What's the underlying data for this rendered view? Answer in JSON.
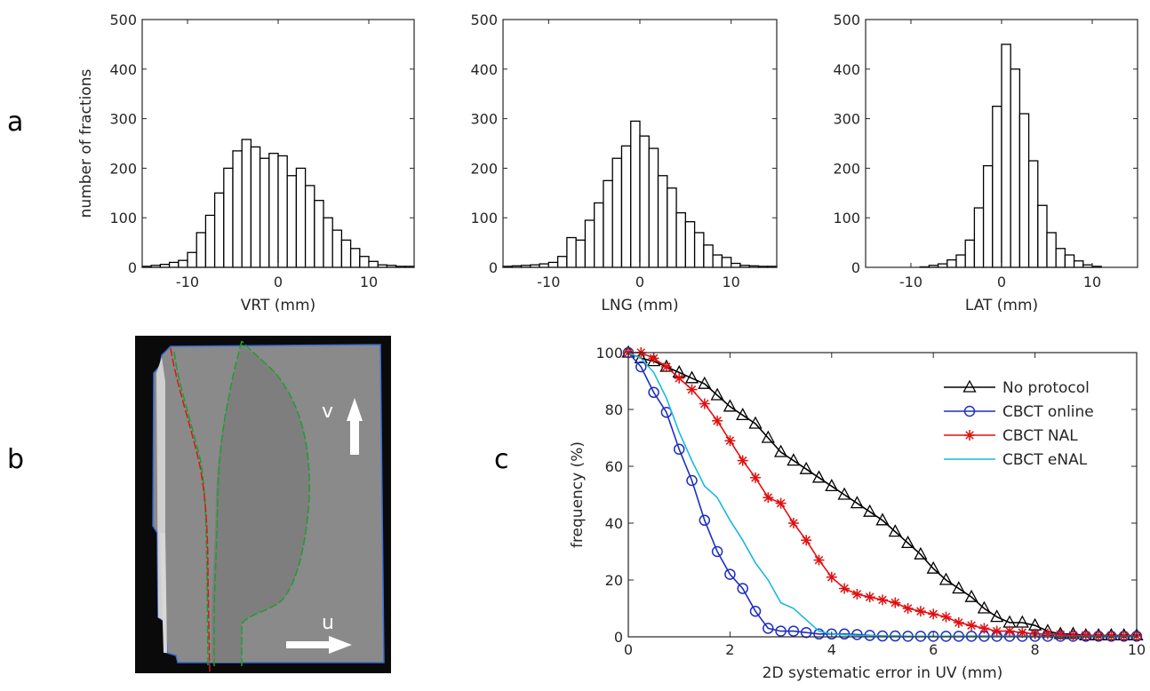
{
  "panels": {
    "a": "a",
    "b": "b",
    "c": "c"
  },
  "image_panel": {
    "label_v": "v",
    "label_u": "u"
  },
  "chart_data": [
    {
      "type": "bar",
      "panel": "a",
      "xlabel": "VRT (mm)",
      "ylabel": "number of fractions",
      "xlim": [
        -15,
        15
      ],
      "ylim": [
        0,
        500
      ],
      "xticks": [
        -10,
        0,
        10
      ],
      "yticks": [
        0,
        100,
        200,
        300,
        400,
        500
      ],
      "bin_width": 1,
      "bin_centers": [
        -14.5,
        -13.5,
        -12.5,
        -11.5,
        -10.5,
        -9.5,
        -8.5,
        -7.5,
        -6.5,
        -5.5,
        -4.5,
        -3.5,
        -2.5,
        -1.5,
        -0.5,
        0.5,
        1.5,
        2.5,
        3.5,
        4.5,
        5.5,
        6.5,
        7.5,
        8.5,
        9.5,
        10.5,
        11.5,
        12.5,
        13.5,
        14.5
      ],
      "values": [
        2,
        4,
        6,
        10,
        14,
        30,
        70,
        105,
        150,
        200,
        235,
        258,
        243,
        220,
        230,
        225,
        185,
        200,
        165,
        135,
        100,
        75,
        55,
        38,
        22,
        12,
        5,
        4,
        2,
        2
      ]
    },
    {
      "type": "bar",
      "panel": "a",
      "xlabel": "LNG (mm)",
      "ylabel": "",
      "xlim": [
        -15,
        15
      ],
      "ylim": [
        0,
        500
      ],
      "xticks": [
        -10,
        0,
        10
      ],
      "yticks": [
        0,
        100,
        200,
        300,
        400,
        500
      ],
      "bin_width": 1,
      "bin_centers": [
        -14.5,
        -13.5,
        -12.5,
        -11.5,
        -10.5,
        -9.5,
        -8.5,
        -7.5,
        -6.5,
        -5.5,
        -4.5,
        -3.5,
        -2.5,
        -1.5,
        -0.5,
        0.5,
        1.5,
        2.5,
        3.5,
        4.5,
        5.5,
        6.5,
        7.5,
        8.5,
        9.5,
        10.5,
        11.5,
        12.5,
        13.5,
        14.5
      ],
      "values": [
        2,
        3,
        4,
        5,
        7,
        10,
        22,
        60,
        55,
        95,
        130,
        175,
        220,
        245,
        295,
        265,
        240,
        185,
        160,
        110,
        92,
        70,
        45,
        25,
        20,
        8,
        4,
        3,
        2,
        2
      ]
    },
    {
      "type": "bar",
      "panel": "a",
      "xlabel": "LAT (mm)",
      "ylabel": "",
      "xlim": [
        -15,
        15
      ],
      "ylim": [
        0,
        500
      ],
      "xticks": [
        -10,
        0,
        10
      ],
      "yticks": [
        0,
        100,
        200,
        300,
        400,
        500
      ],
      "bin_width": 1,
      "bin_centers": [
        -8.5,
        -7.5,
        -6.5,
        -5.5,
        -4.5,
        -3.5,
        -2.5,
        -1.5,
        -0.5,
        0.5,
        1.5,
        2.5,
        3.5,
        4.5,
        5.5,
        6.5,
        7.5,
        8.5,
        9.5,
        10.5
      ],
      "values": [
        1,
        4,
        7,
        15,
        25,
        55,
        120,
        205,
        325,
        450,
        400,
        310,
        215,
        125,
        70,
        38,
        25,
        13,
        5,
        2
      ]
    },
    {
      "type": "line",
      "panel": "c",
      "xlabel": "2D systematic error in UV (mm)",
      "ylabel": "frequency (%)",
      "xlim": [
        0,
        10
      ],
      "ylim": [
        0,
        100
      ],
      "xticks": [
        0,
        2,
        4,
        6,
        8,
        10
      ],
      "yticks": [
        0,
        20,
        40,
        60,
        80,
        100
      ],
      "legend_position": "top-right",
      "series": [
        {
          "name": "No protocol",
          "color": "#000000",
          "marker": "triangle",
          "x": [
            0,
            0.25,
            0.5,
            0.75,
            1,
            1.25,
            1.5,
            1.75,
            2,
            2.25,
            2.5,
            2.75,
            3,
            3.25,
            3.5,
            3.75,
            4,
            4.25,
            4.5,
            4.75,
            5,
            5.25,
            5.5,
            5.75,
            6,
            6.25,
            6.5,
            6.75,
            7,
            7.25,
            7.5,
            7.75,
            8,
            8.25,
            8.5,
            8.75,
            9,
            9.25,
            9.5,
            9.75,
            10
          ],
          "y": [
            100,
            98,
            97,
            95,
            93,
            91,
            89,
            85,
            81,
            78,
            75,
            70,
            65,
            62,
            59,
            56,
            53,
            50,
            47,
            44,
            41,
            37,
            33,
            29,
            24,
            20,
            17,
            14,
            10,
            7,
            5,
            5,
            4,
            2,
            1,
            1,
            0.5,
            0.5,
            0.5,
            0.5,
            0.5
          ]
        },
        {
          "name": "CBCT online",
          "color": "#1f2fbf",
          "marker": "circle",
          "x": [
            0,
            0.25,
            0.5,
            0.75,
            1,
            1.25,
            1.5,
            1.75,
            2,
            2.25,
            2.5,
            2.75,
            3,
            3.25,
            3.5,
            3.75,
            4,
            4.25,
            4.5,
            4.75,
            5,
            5.25,
            5.5,
            5.75,
            6,
            6.25,
            6.5,
            6.75,
            7,
            7.25,
            7.5,
            7.75,
            8,
            8.25,
            8.5,
            8.75,
            9,
            9.25,
            9.5,
            9.75,
            10
          ],
          "y": [
            100,
            95,
            86,
            79,
            66,
            55,
            41,
            30,
            22,
            17,
            9,
            3,
            2,
            2,
            1.5,
            1,
            1,
            1,
            0.8,
            0.5,
            0.3,
            0.3,
            0.2,
            0.2,
            0.2,
            0.2,
            0.2,
            0.2,
            0.2,
            0.2,
            0.2,
            0.2,
            0.2,
            0.2,
            0.2,
            0.2,
            0.2,
            0.2,
            0.2,
            0.2,
            0.2
          ]
        },
        {
          "name": "CBCT NAL",
          "color": "#e01010",
          "marker": "star",
          "x": [
            0,
            0.25,
            0.5,
            0.75,
            1,
            1.25,
            1.5,
            1.75,
            2,
            2.25,
            2.5,
            2.75,
            3,
            3.25,
            3.5,
            3.75,
            4,
            4.25,
            4.5,
            4.75,
            5,
            5.25,
            5.5,
            5.75,
            6,
            6.25,
            6.5,
            6.75,
            7,
            7.25,
            7.5,
            7.75,
            8,
            8.25,
            8.5,
            8.75,
            9,
            9.25,
            9.5,
            9.75,
            10
          ],
          "y": [
            100,
            100,
            98,
            95,
            91,
            87,
            82,
            76,
            69,
            62,
            56,
            49,
            47,
            40,
            34,
            27,
            21,
            17,
            15,
            14,
            13,
            12,
            10,
            9,
            8,
            7,
            5,
            4,
            3,
            2,
            2,
            1.5,
            1,
            1,
            0.8,
            0.5,
            0.5,
            0.3,
            0.3,
            0.3,
            0.3
          ]
        },
        {
          "name": "CBCT eNAL",
          "color": "#1ab8e0",
          "marker": "none",
          "x": [
            0,
            0.25,
            0.5,
            0.75,
            1,
            1.25,
            1.5,
            1.75,
            2,
            2.25,
            2.5,
            2.75,
            3,
            3.25,
            3.5,
            3.75,
            4,
            4.5,
            5,
            5.5,
            6,
            7,
            8,
            9,
            10
          ],
          "y": [
            100,
            98,
            93,
            84,
            72,
            62,
            53,
            49,
            41,
            34,
            26,
            20,
            12,
            10,
            6,
            2,
            1,
            0.5,
            0.3,
            0.2,
            0.2,
            0.1,
            0.1,
            0.1,
            0.1
          ]
        }
      ]
    }
  ]
}
